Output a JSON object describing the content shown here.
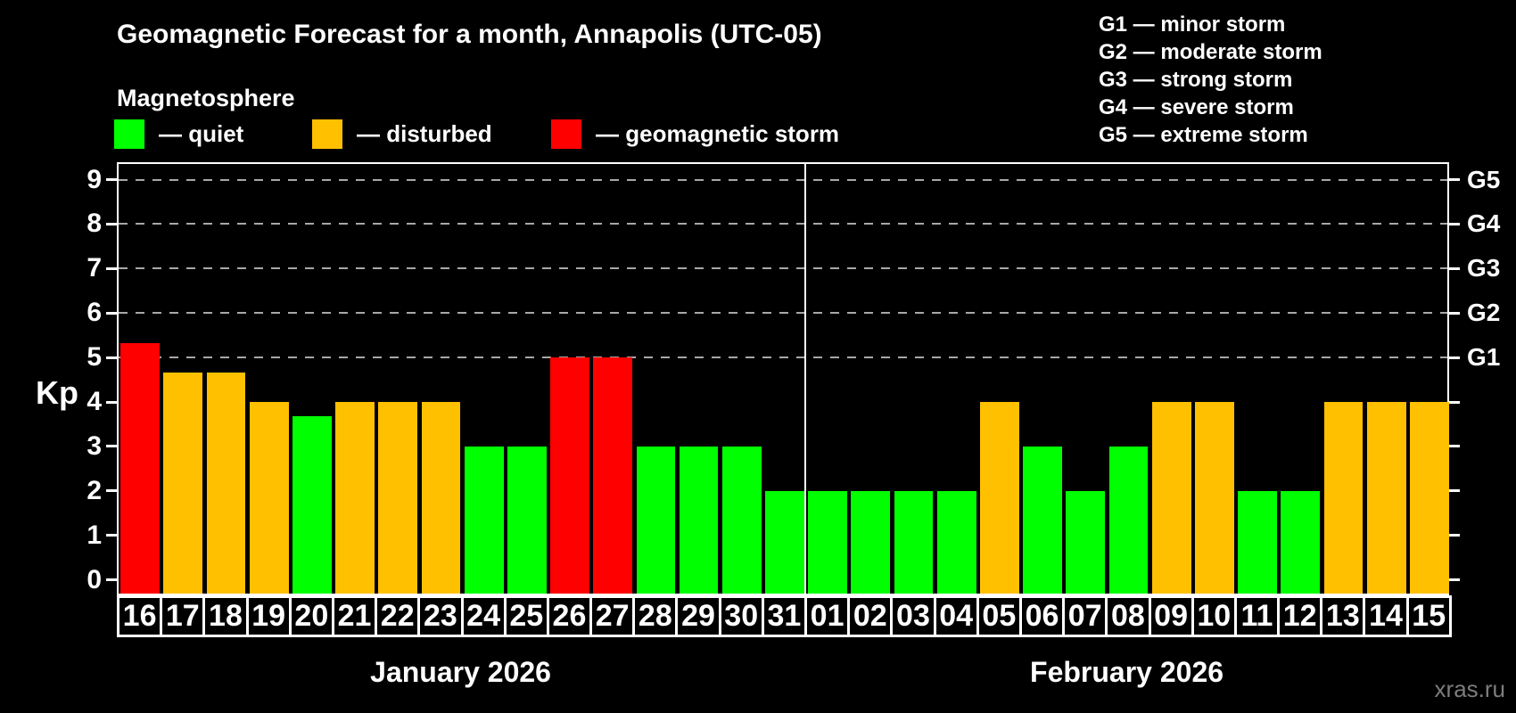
{
  "title": "Geomagnetic Forecast for a month, Annapolis (UTC-05)",
  "subtitle": "Magnetosphere",
  "legend": {
    "items": [
      {
        "key": "quiet",
        "label": "— quiet"
      },
      {
        "key": "disturbed",
        "label": "— disturbed"
      },
      {
        "key": "storm",
        "label": "— geomagnetic storm"
      }
    ]
  },
  "g_legend": [
    "G1 — minor storm",
    "G2 — moderate storm",
    "G3 — strong storm",
    "G4 — severe storm",
    "G5 — extreme storm"
  ],
  "watermark": "xras.ru",
  "colors": {
    "quiet": "#00ff00",
    "disturbed": "#ffc000",
    "storm": "#ff0000",
    "grid": "#a8a8a8",
    "watermark": "#7d7d7d",
    "background": "#000000",
    "axis": "#ffffff"
  },
  "chart_data": {
    "type": "bar",
    "ylabel": "Kp",
    "ylim": [
      0,
      9
    ],
    "yticks": [
      "0",
      "1",
      "2",
      "3",
      "4",
      "5",
      "6",
      "7",
      "8",
      "9"
    ],
    "gridlines": [
      5,
      6,
      7,
      8,
      9
    ],
    "grid_style": "dashed",
    "right_axis": [
      {
        "kp": 5,
        "label": "G1"
      },
      {
        "kp": 6,
        "label": "G2"
      },
      {
        "kp": 7,
        "label": "G3"
      },
      {
        "kp": 8,
        "label": "G4"
      },
      {
        "kp": 9,
        "label": "G5"
      }
    ],
    "months": [
      {
        "label": "January 2026",
        "days": 16
      },
      {
        "label": "February 2026",
        "days": 15
      }
    ],
    "bars": [
      {
        "day": "16",
        "value": 5.33,
        "status": "storm"
      },
      {
        "day": "17",
        "value": 4.67,
        "status": "disturbed"
      },
      {
        "day": "18",
        "value": 4.67,
        "status": "disturbed"
      },
      {
        "day": "19",
        "value": 4,
        "status": "disturbed"
      },
      {
        "day": "20",
        "value": 3.67,
        "status": "quiet"
      },
      {
        "day": "21",
        "value": 4,
        "status": "disturbed"
      },
      {
        "day": "22",
        "value": 4,
        "status": "disturbed"
      },
      {
        "day": "23",
        "value": 4,
        "status": "disturbed"
      },
      {
        "day": "24",
        "value": 3,
        "status": "quiet"
      },
      {
        "day": "25",
        "value": 3,
        "status": "quiet"
      },
      {
        "day": "26",
        "value": 5,
        "status": "storm"
      },
      {
        "day": "27",
        "value": 5,
        "status": "storm"
      },
      {
        "day": "28",
        "value": 3,
        "status": "quiet"
      },
      {
        "day": "29",
        "value": 3,
        "status": "quiet"
      },
      {
        "day": "30",
        "value": 3,
        "status": "quiet"
      },
      {
        "day": "31",
        "value": 2,
        "status": "quiet"
      },
      {
        "day": "01",
        "value": 2,
        "status": "quiet"
      },
      {
        "day": "02",
        "value": 2,
        "status": "quiet"
      },
      {
        "day": "03",
        "value": 2,
        "status": "quiet"
      },
      {
        "day": "04",
        "value": 2,
        "status": "quiet"
      },
      {
        "day": "05",
        "value": 4,
        "status": "disturbed"
      },
      {
        "day": "06",
        "value": 3,
        "status": "quiet"
      },
      {
        "day": "07",
        "value": 2,
        "status": "quiet"
      },
      {
        "day": "08",
        "value": 3,
        "status": "quiet"
      },
      {
        "day": "09",
        "value": 4,
        "status": "disturbed"
      },
      {
        "day": "10",
        "value": 4,
        "status": "disturbed"
      },
      {
        "day": "11",
        "value": 2,
        "status": "quiet"
      },
      {
        "day": "12",
        "value": 2,
        "status": "quiet"
      },
      {
        "day": "13",
        "value": 4,
        "status": "disturbed"
      },
      {
        "day": "14",
        "value": 4,
        "status": "disturbed"
      },
      {
        "day": "15",
        "value": 4,
        "status": "disturbed"
      }
    ]
  }
}
